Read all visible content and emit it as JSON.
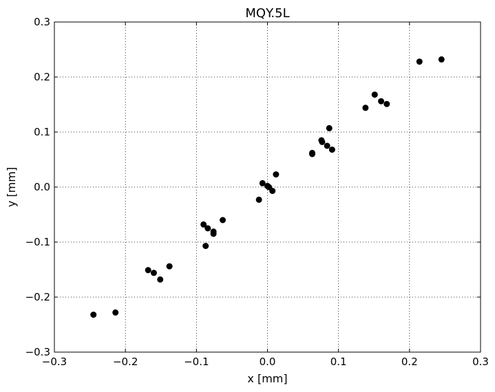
{
  "chart_data": {
    "type": "scatter",
    "title": "MQY.5L",
    "xlabel": "x [mm]",
    "ylabel": "y [mm]",
    "xlim": [
      -0.3,
      0.3
    ],
    "ylim": [
      -0.3,
      0.3
    ],
    "xticks": [
      "−0.3",
      "−0.2",
      "−0.1",
      "0.0",
      "0.1",
      "0.2",
      "0.3"
    ],
    "yticks": [
      "−0.3",
      "−0.2",
      "−0.1",
      "0.0",
      "0.1",
      "0.2",
      "0.3"
    ],
    "grid": true,
    "marker_color": "#000000",
    "series": [
      {
        "points": [
          {
            "x": -0.245,
            "y": -0.232
          },
          {
            "x": -0.214,
            "y": -0.228
          },
          {
            "x": -0.168,
            "y": -0.151
          },
          {
            "x": -0.16,
            "y": -0.156
          },
          {
            "x": -0.151,
            "y": -0.168
          },
          {
            "x": -0.138,
            "y": -0.144
          },
          {
            "x": -0.09,
            "y": -0.068
          },
          {
            "x": -0.084,
            "y": -0.075
          },
          {
            "x": -0.087,
            "y": -0.107
          },
          {
            "x": -0.076,
            "y": -0.081
          },
          {
            "x": -0.076,
            "y": -0.085
          },
          {
            "x": -0.063,
            "y": -0.06
          },
          {
            "x": -0.012,
            "y": -0.023
          },
          {
            "x": -0.007,
            "y": 0.007
          },
          {
            "x": 0.0,
            "y": 0.002
          },
          {
            "x": 0.002,
            "y": -0.0
          },
          {
            "x": 0.007,
            "y": -0.007
          },
          {
            "x": 0.012,
            "y": 0.023
          },
          {
            "x": 0.063,
            "y": 0.06
          },
          {
            "x": 0.063,
            "y": 0.062
          },
          {
            "x": 0.076,
            "y": 0.085
          },
          {
            "x": 0.077,
            "y": 0.082
          },
          {
            "x": 0.084,
            "y": 0.075
          },
          {
            "x": 0.087,
            "y": 0.107
          },
          {
            "x": 0.091,
            "y": 0.068
          },
          {
            "x": 0.138,
            "y": 0.144
          },
          {
            "x": 0.151,
            "y": 0.168
          },
          {
            "x": 0.16,
            "y": 0.156
          },
          {
            "x": 0.168,
            "y": 0.151
          },
          {
            "x": 0.214,
            "y": 0.228
          },
          {
            "x": 0.245,
            "y": 0.232
          }
        ]
      }
    ]
  }
}
